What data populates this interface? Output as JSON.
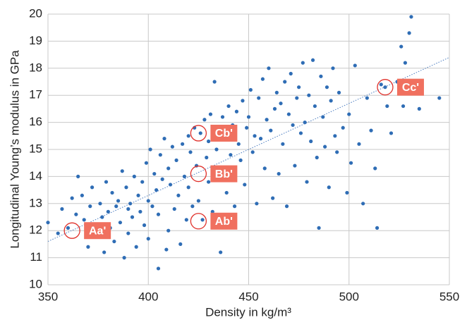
{
  "chart_data": {
    "type": "scatter",
    "xlabel": "Density in kg/m³",
    "ylabel": "Longitudinal Young’s modulus in GPa",
    "xlim": [
      350,
      550
    ],
    "xticks": [
      350,
      400,
      450,
      500,
      550
    ],
    "ylim": [
      10,
      20
    ],
    "yticks": [
      10,
      11,
      12,
      13,
      14,
      15,
      16,
      17,
      18,
      19,
      20
    ],
    "grid": true,
    "series": [
      {
        "color": "#2f6db5",
        "x": [
          350,
          355,
          357,
          360,
          362,
          364,
          365,
          367,
          368,
          370,
          371,
          372,
          373,
          375,
          376,
          377,
          378,
          379,
          380,
          381,
          382,
          383,
          384,
          385,
          386,
          387,
          388,
          389,
          390,
          390,
          391,
          392,
          393,
          394,
          395,
          396,
          397,
          398,
          399,
          400,
          400,
          401,
          402,
          403,
          404,
          405,
          405,
          406,
          407,
          408,
          409,
          410,
          410,
          411,
          412,
          413,
          414,
          415,
          416,
          417,
          418,
          419,
          420,
          420,
          421,
          422,
          423,
          424,
          425,
          426,
          427,
          428,
          429,
          430,
          430,
          431,
          432,
          433,
          434,
          435,
          436,
          437,
          438,
          439,
          440,
          441,
          442,
          443,
          444,
          445,
          446,
          447,
          448,
          449,
          450,
          451,
          452,
          453,
          454,
          455,
          456,
          457,
          458,
          459,
          460,
          461,
          462,
          463,
          464,
          465,
          466,
          467,
          468,
          469,
          470,
          471,
          472,
          473,
          474,
          475,
          476,
          477,
          478,
          479,
          480,
          481,
          482,
          483,
          484,
          485,
          486,
          487,
          488,
          489,
          490,
          491,
          492,
          493,
          494,
          495,
          497,
          499,
          500,
          501,
          503,
          505,
          507,
          509,
          511,
          513,
          514,
          516,
          518,
          519,
          521,
          524,
          526,
          527,
          528,
          530,
          531,
          535,
          545
        ],
        "values": [
          12.3,
          11.9,
          12.8,
          12.1,
          13.2,
          12.6,
          14.0,
          13.3,
          12.4,
          11.4,
          12.9,
          13.6,
          12.2,
          11.8,
          13.0,
          12.5,
          11.2,
          13.8,
          12.7,
          12.1,
          13.4,
          11.6,
          12.9,
          13.1,
          12.3,
          14.2,
          11.0,
          13.6,
          12.8,
          11.9,
          13.0,
          12.5,
          14.0,
          11.4,
          13.3,
          12.7,
          13.8,
          12.2,
          14.5,
          13.1,
          11.7,
          15.0,
          12.9,
          14.1,
          13.5,
          10.6,
          12.6,
          14.8,
          13.9,
          15.4,
          11.3,
          14.3,
          12.0,
          13.7,
          15.1,
          12.8,
          14.6,
          13.3,
          11.5,
          15.2,
          14.0,
          12.4,
          15.5,
          13.6,
          14.9,
          12.9,
          15.8,
          14.4,
          13.1,
          15.6,
          12.4,
          16.1,
          14.7,
          13.8,
          15.3,
          16.3,
          12.7,
          17.5,
          15.0,
          14.2,
          11.2,
          16.2,
          15.7,
          13.4,
          16.6,
          14.8,
          15.9,
          12.9,
          16.4,
          15.2,
          14.6,
          16.8,
          13.7,
          15.8,
          16.2,
          17.2,
          14.9,
          15.5,
          13.0,
          16.9,
          15.4,
          17.6,
          14.3,
          16.1,
          18.0,
          15.7,
          13.2,
          16.5,
          17.1,
          14.1,
          16.7,
          15.2,
          17.5,
          12.9,
          16.3,
          17.8,
          15.9,
          14.4,
          16.9,
          17.3,
          15.6,
          18.2,
          16.0,
          13.8,
          17.0,
          15.3,
          18.3,
          16.6,
          14.7,
          12.1,
          17.7,
          16.2,
          15.1,
          17.3,
          13.6,
          16.8,
          18.0,
          15.5,
          14.9,
          17.1,
          15.8,
          13.4,
          16.3,
          14.5,
          18.1,
          15.2,
          13.0,
          16.9,
          15.7,
          14.3,
          12.1,
          17.4,
          17.3,
          16.6,
          15.6,
          17.5,
          18.8,
          16.6,
          18.2,
          19.3,
          19.9,
          16.5,
          16.9
        ]
      }
    ],
    "trendline": {
      "x": [
        350,
        550
      ],
      "y": [
        11.6,
        18.4
      ]
    },
    "annotations": [
      {
        "text": "Aa'",
        "x": 362,
        "y": 12.0
      },
      {
        "text": "Ab'",
        "x": 425,
        "y": 12.35
      },
      {
        "text": "Bb'",
        "x": 425,
        "y": 14.1
      },
      {
        "text": "Cb'",
        "x": 425,
        "y": 15.6
      },
      {
        "text": "Cc'",
        "x": 518,
        "y": 17.3
      }
    ]
  }
}
